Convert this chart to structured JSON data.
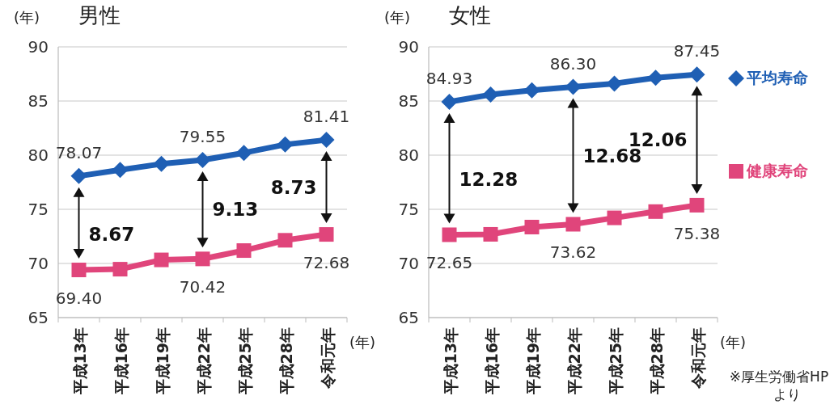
{
  "chart_data": [
    {
      "type": "line",
      "title": "男性",
      "ylabel": "(年)",
      "xlabel": "(年)",
      "categories": [
        "平成13年",
        "平成16年",
        "平成19年",
        "平成22年",
        "平成25年",
        "平成28年",
        "令和元年"
      ],
      "ylim": [
        65,
        90
      ],
      "yticks": [
        65,
        70,
        75,
        80,
        85,
        90
      ],
      "grid": "y",
      "legend": false,
      "series": [
        {
          "color": "#1f5fb4",
          "marker": "diamond",
          "values": [
            78.07,
            78.64,
            79.19,
            79.55,
            80.21,
            80.98,
            81.41
          ],
          "value_labels": [
            "78.07",
            null,
            null,
            "79.55",
            null,
            null,
            "81.41"
          ]
        },
        {
          "color": "#e0457b",
          "marker": "square",
          "values": [
            69.4,
            69.47,
            70.33,
            70.42,
            71.19,
            72.14,
            72.68
          ],
          "value_labels": [
            "69.40",
            null,
            null,
            "70.42",
            null,
            null,
            "72.68"
          ]
        }
      ],
      "annotations": [
        "8.67",
        "9.13",
        "8.73"
      ]
    },
    {
      "type": "line",
      "title": "女性",
      "ylabel": "(年)",
      "xlabel": "(年)",
      "categories": [
        "平成13年",
        "平成16年",
        "平成19年",
        "平成22年",
        "平成25年",
        "平成28年",
        "令和元年"
      ],
      "ylim": [
        65,
        90
      ],
      "yticks": [
        65,
        70,
        75,
        80,
        85,
        90
      ],
      "grid": "y",
      "legend": "right",
      "series": [
        {
          "name": "平均寿命",
          "color": "#1f5fb4",
          "marker": "diamond",
          "values": [
            84.93,
            85.59,
            85.99,
            86.3,
            86.61,
            87.14,
            87.45
          ],
          "value_labels": [
            "84.93",
            null,
            null,
            "86.30",
            null,
            null,
            "87.45"
          ]
        },
        {
          "name": "健康寿命",
          "color": "#e0457b",
          "marker": "square",
          "values": [
            72.65,
            72.69,
            73.36,
            73.62,
            74.21,
            74.79,
            75.38
          ],
          "value_labels": [
            "72.65",
            null,
            null,
            "73.62",
            null,
            null,
            "75.38"
          ]
        }
      ],
      "annotations": [
        "12.28",
        "12.68",
        "12.06",
        "※厚生労働省HPより"
      ]
    }
  ]
}
